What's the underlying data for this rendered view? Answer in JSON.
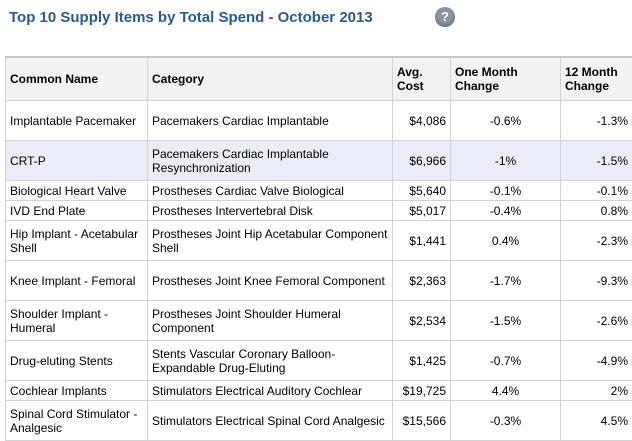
{
  "title": "Top 10 Supply Items by Total Spend - October 2013",
  "help_icon": "?",
  "columns": {
    "name": "Common Name",
    "category": "Category",
    "avg_cost": "Avg. Cost",
    "one_month": "One Month Change",
    "twelve_month": "12 Month Change"
  },
  "rows": [
    {
      "name": "Implantable Pacemaker",
      "category": "Pacemakers Cardiac Implantable",
      "avg_cost": "$4,086",
      "one_month": "-0.6%",
      "twelve_month": "-1.3%"
    },
    {
      "name": "CRT-P",
      "category": "Pacemakers Cardiac Implantable Resynchronization",
      "avg_cost": "$6,966",
      "one_month": "-1%",
      "twelve_month": "-1.5%"
    },
    {
      "name": "Biological Heart Valve",
      "category": "Prostheses Cardiac Valve Biological",
      "avg_cost": "$5,640",
      "one_month": "-0.1%",
      "twelve_month": "-0.1%"
    },
    {
      "name": "IVD End Plate",
      "category": "Prostheses Intervertebral Disk",
      "avg_cost": "$5,017",
      "one_month": "-0.4%",
      "twelve_month": "0.8%"
    },
    {
      "name": "Hip Implant - Acetabular Shell",
      "category": "Prostheses Joint Hip Acetabular Component Shell",
      "avg_cost": "$1,441",
      "one_month": "0.4%",
      "twelve_month": "-2.3%"
    },
    {
      "name": "Knee Implant - Femoral",
      "category": "Prostheses Joint Knee Femoral Component",
      "avg_cost": "$2,363",
      "one_month": "-1.7%",
      "twelve_month": "-9.3%"
    },
    {
      "name": "Shoulder Implant - Humeral",
      "category": "Prostheses Joint Shoulder Humeral Component",
      "avg_cost": "$2,534",
      "one_month": "-1.5%",
      "twelve_month": "-2.6%"
    },
    {
      "name": "Drug-eluting Stents",
      "category": "Stents Vascular Coronary Balloon-Expandable Drug-Eluting",
      "avg_cost": "$1,425",
      "one_month": "-0.7%",
      "twelve_month": "-4.9%"
    },
    {
      "name": "Cochlear Implants",
      "category": "Stimulators Electrical Auditory Cochlear",
      "avg_cost": "$19,725",
      "one_month": "4.4%",
      "twelve_month": "2%"
    },
    {
      "name": "Spinal Cord Stimulator - Analgesic",
      "category": "Stimulators Electrical Spinal Cord Analgesic",
      "avg_cost": "$15,566",
      "one_month": "-0.3%",
      "twelve_month": "4.5%"
    }
  ]
}
